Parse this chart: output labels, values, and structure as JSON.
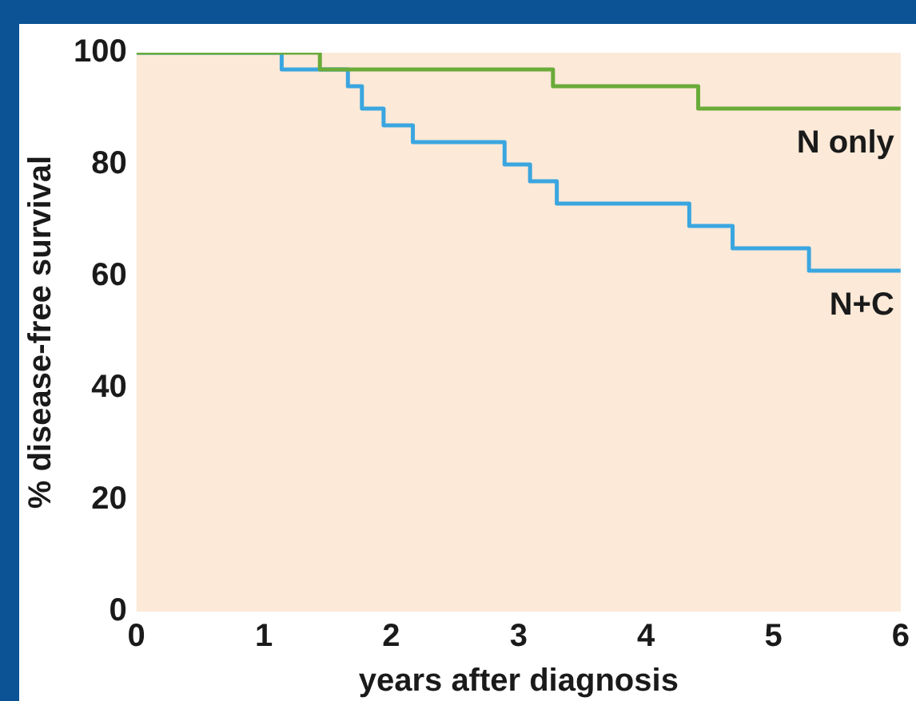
{
  "chart_data": {
    "type": "step",
    "xlabel": "years after diagnosis",
    "ylabel": "% disease-free survival",
    "xlim": [
      0,
      6
    ],
    "xticks": [
      0,
      1,
      2,
      3,
      4,
      5,
      6
    ],
    "ylim": [
      0,
      100
    ],
    "yticks": [
      0,
      20,
      40,
      60,
      80,
      100
    ],
    "grid": false,
    "legend": false,
    "marker": "none",
    "line_style": "solid",
    "series": [
      {
        "name": "N only",
        "color": "#6aab3a",
        "x": [
          0,
          1.44,
          3.27,
          4.41,
          6
        ],
        "values": [
          100,
          97,
          94,
          90,
          90
        ]
      },
      {
        "name": "N+C",
        "color": "#3aa6e0",
        "x": [
          0,
          1.14,
          1.66,
          1.77,
          1.94,
          2.17,
          2.89,
          3.09,
          3.3,
          4.34,
          4.68,
          5.28,
          6
        ],
        "values": [
          100,
          97,
          94,
          90,
          87,
          84,
          80,
          77,
          73,
          69,
          65,
          61,
          61
        ]
      }
    ]
  }
}
